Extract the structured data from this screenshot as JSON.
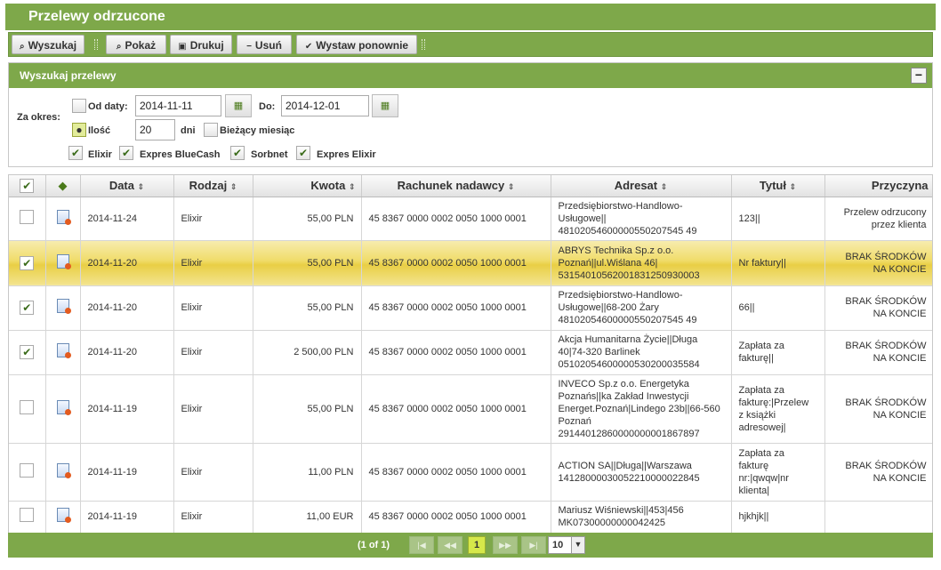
{
  "title": "Przelewy odrzucone",
  "toolbar": {
    "search": "Wyszukaj",
    "show": "Pokaż",
    "print": "Drukuj",
    "delete": "Usuń",
    "resubmit": "Wystaw ponownie"
  },
  "search": {
    "header": "Wyszukaj przelewy",
    "period_label": "Za okres:",
    "from_label": "Od daty:",
    "from_value": "2014-11-11",
    "to_label": "Do:",
    "to_value": "2014-12-01",
    "count_label": "Ilość",
    "count_value": "20",
    "days_label": "dni",
    "current_month_label": "Bieżący miesiąc",
    "types": [
      "Elixir",
      "Expres BlueCash",
      "Sorbnet",
      "Expres Elixir"
    ]
  },
  "columns": {
    "date": "Data",
    "type": "Rodzaj",
    "amount": "Kwota",
    "account": "Rachunek nadawcy",
    "recipient": "Adresat",
    "title": "Tytuł",
    "reason": "Przyczyna"
  },
  "rows": [
    {
      "checked": false,
      "date": "2014-11-24",
      "type": "Elixir",
      "amount": "55,00 PLN",
      "account": "45 8367 0000 0002 0050 1000 0001",
      "recipient": [
        "Przedsiębiorstwo-Handlowo-",
        "Usługowe||",
        "48102054600000550207545 49"
      ],
      "title": [
        "123||"
      ],
      "reason": [
        "Przelew odrzucony",
        "przez klienta"
      ]
    },
    {
      "checked": true,
      "date": "2014-11-20",
      "type": "Elixir",
      "amount": "55,00 PLN",
      "account": "45 8367 0000 0002 0050 1000 0001",
      "recipient": [
        "ABRYS Technika Sp.z o.o.",
        "Poznań||ul.Wiślana 46|",
        "53154010562001831250930003"
      ],
      "title": [
        "Nr faktury||"
      ],
      "reason": [
        "BRAK ŚRODKÓW",
        "NA KONCIE"
      ]
    },
    {
      "checked": true,
      "date": "2014-11-20",
      "type": "Elixir",
      "amount": "55,00 PLN",
      "account": "45 8367 0000 0002 0050 1000 0001",
      "recipient": [
        "Przedsiębiorstwo-Handlowo-",
        "Usługowe||68-200 Żary",
        "48102054600000550207545 49"
      ],
      "title": [
        "66||"
      ],
      "reason": [
        "BRAK ŚRODKÓW",
        "NA KONCIE"
      ]
    },
    {
      "checked": true,
      "date": "2014-11-20",
      "type": "Elixir",
      "amount": "2 500,00 PLN",
      "account": "45 8367 0000 0002 0050 1000 0001",
      "recipient": [
        "Akcja Humanitarna Życie||Długa",
        "40|74-320 Barlinek",
        "05102054600000530200035584"
      ],
      "title": [
        "Zapłata za",
        "fakturę||"
      ],
      "reason": [
        "BRAK ŚRODKÓW",
        "NA KONCIE"
      ]
    },
    {
      "checked": false,
      "date": "2014-11-19",
      "type": "Elixir",
      "amount": "55,00 PLN",
      "account": "45 8367 0000 0002 0050 1000 0001",
      "recipient": [
        "INVECO Sp.z o.o. Energetyka",
        "Poznańs||ka Zakład Inwestycji",
        "Energet.Poznań|Lindego 23b||66-560",
        "Poznań",
        "29144012860000000001867897"
      ],
      "title": [
        "Zapłata za",
        "fakturę:|Przelew",
        "z książki",
        "adresowej|"
      ],
      "reason": [
        "BRAK ŚRODKÓW",
        "NA KONCIE"
      ]
    },
    {
      "checked": false,
      "date": "2014-11-19",
      "type": "Elixir",
      "amount": "11,00 PLN",
      "account": "45 8367 0000 0002 0050 1000 0001",
      "recipient": [
        "ACTION SA||Długa||Warszawa",
        "14128000030052210000022845"
      ],
      "title": [
        "Zapłata za",
        "fakturę",
        "nr:|qwqw|nr",
        "klienta|"
      ],
      "reason": [
        "BRAK ŚRODKÓW",
        "NA KONCIE"
      ]
    },
    {
      "checked": false,
      "date": "2014-11-19",
      "type": "Elixir",
      "amount": "11,00 EUR",
      "account": "45 8367 0000 0002 0050 1000 0001",
      "recipient": [
        "Mariusz Wiśniewski||453|456",
        "MK07300000000042425"
      ],
      "title": [
        "hjkhjk||"
      ],
      "reason": []
    }
  ],
  "pager": {
    "summary": "(1 of 1)",
    "current_page": "1",
    "page_size": "10"
  }
}
